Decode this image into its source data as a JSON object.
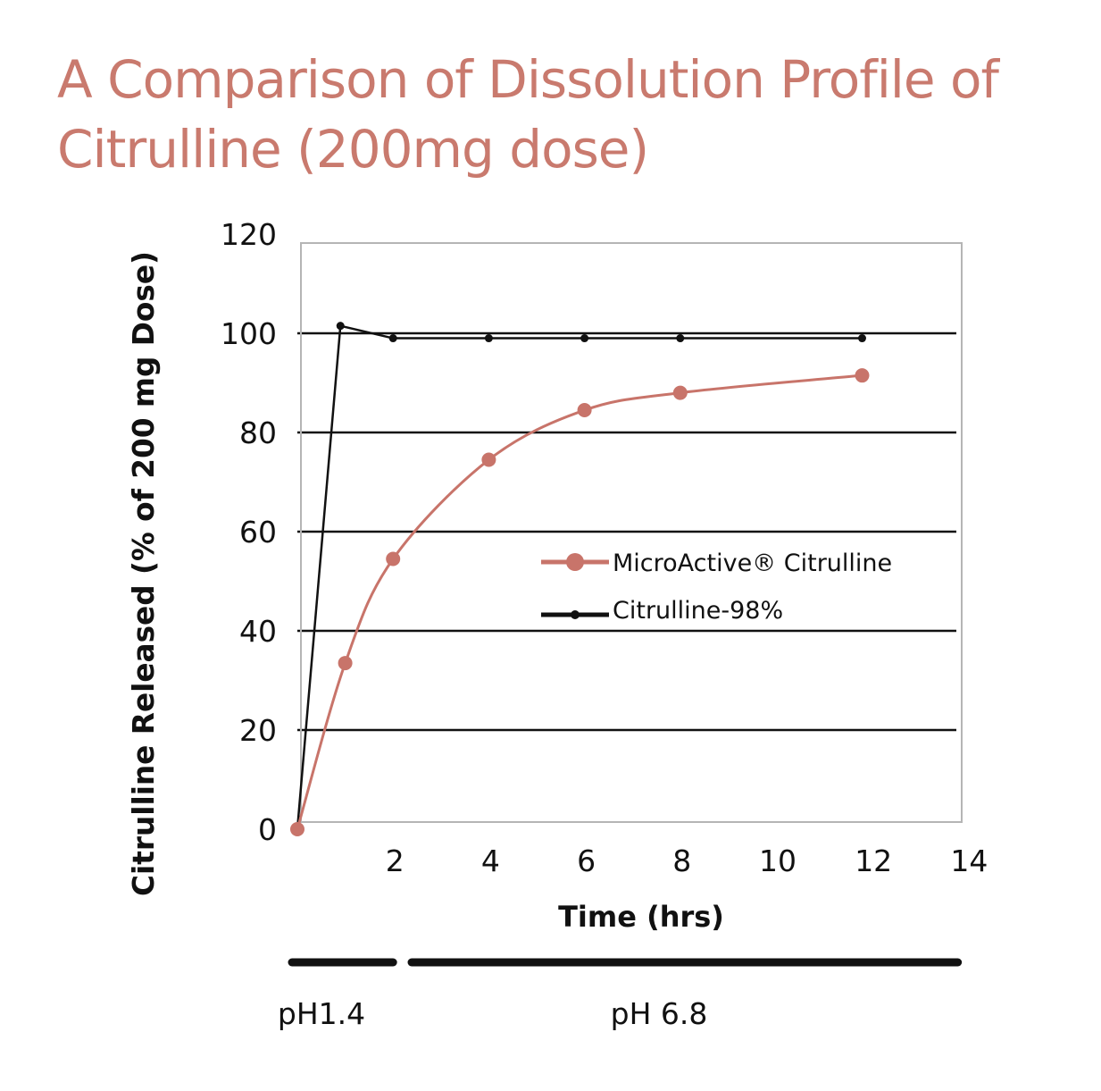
{
  "chart_data": {
    "type": "line",
    "title": "A Comparison of Dissolution Profile of Citrulline (200mg dose)",
    "xlabel": "Time (hrs)",
    "ylabel": "Citrulline Released (% of 200 mg Dose)",
    "xlim": [
      0,
      14
    ],
    "ylim": [
      0,
      120
    ],
    "x_ticks": [
      "2",
      "4",
      "6",
      "8",
      "10",
      "12",
      "14"
    ],
    "y_ticks": [
      "0",
      "20",
      "40",
      "60",
      "80",
      "100",
      "120"
    ],
    "grid": "horizontal",
    "legend_position": "center-right",
    "series": [
      {
        "name": "MicroActive® Citrulline",
        "color": "#c8746a",
        "marker": "large-circle",
        "x": [
          0,
          1,
          2,
          4,
          6,
          8,
          11.8
        ],
        "y": [
          0,
          33.5,
          54.5,
          74.5,
          84.5,
          88,
          91.5
        ]
      },
      {
        "name": "Citrulline-98%",
        "color": "#111111",
        "marker": "small-dot",
        "x": [
          0,
          0.9,
          2,
          4,
          6,
          8,
          11.8
        ],
        "y": [
          0,
          101.5,
          99,
          99,
          99,
          99,
          99
        ]
      }
    ],
    "phases": [
      {
        "label": "pH1.4",
        "from": 0,
        "to": 2
      },
      {
        "label": "pH 6.8",
        "from": 2.5,
        "to": 13.8
      }
    ]
  }
}
